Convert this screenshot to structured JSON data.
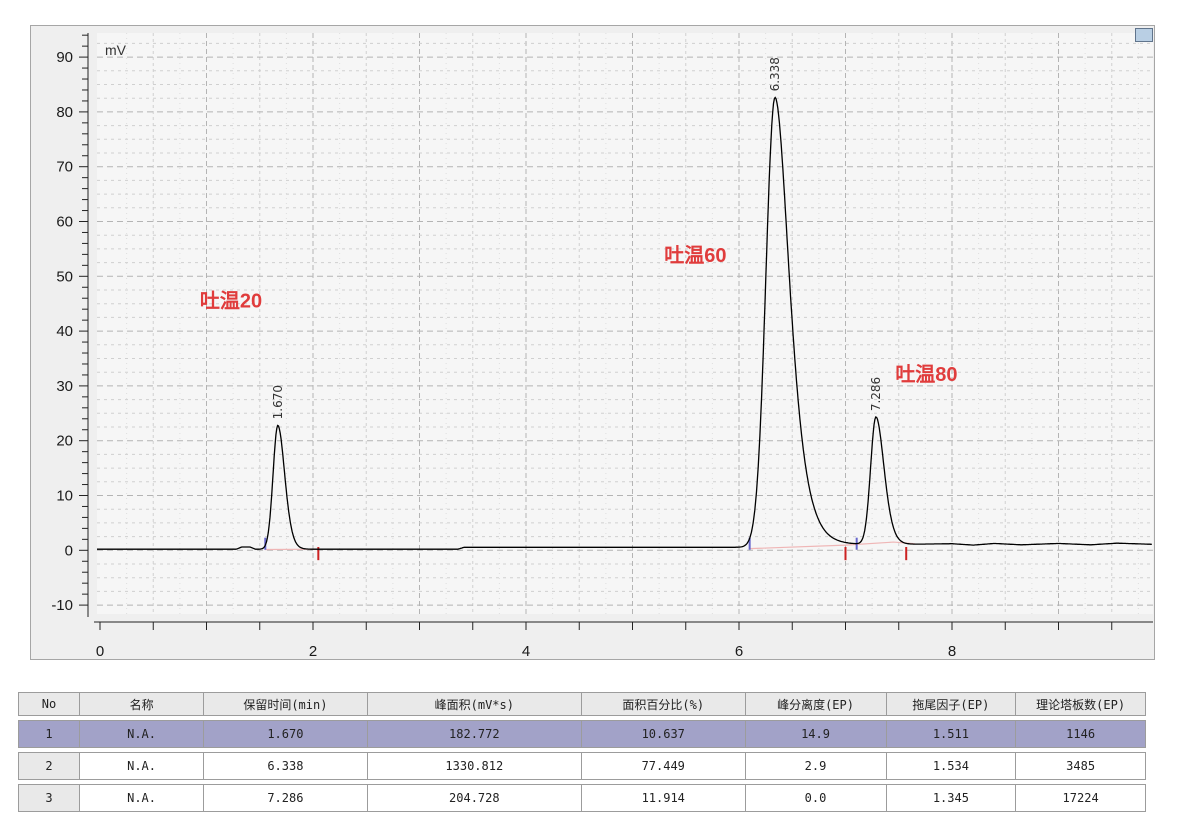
{
  "chart_data": {
    "type": "line",
    "title": "",
    "ylabel": "mV",
    "xlabel": "",
    "xlim": [
      0,
      9.87
    ],
    "ylim": [
      -10,
      94
    ],
    "grid": true,
    "x_tick_values": [
      0,
      2,
      4,
      6,
      8
    ],
    "x_tick_labels": [
      "0",
      "2",
      "4",
      "6",
      "8"
    ],
    "x_minor_tick_step": 0.5,
    "y_tick_values": [
      90,
      80,
      70,
      60,
      50,
      40,
      30,
      20,
      10,
      0,
      -10
    ],
    "y_tick_labels": [
      "90",
      "80",
      "70",
      "60",
      "50",
      "40",
      "30",
      "20",
      "10",
      "0",
      "-10"
    ],
    "y_minor_tick_step": 2,
    "peaks": [
      {
        "retention_time": 1.67,
        "height_mV": 22.6,
        "label": "1.670",
        "annotation": "吐温20",
        "sigma_left": 0.045,
        "sigma_right": 0.06,
        "tail": 1.0
      },
      {
        "retention_time": 6.338,
        "height_mV": 82.0,
        "label": "6.338",
        "annotation": "吐温60",
        "sigma_left": 0.085,
        "sigma_right": 0.115,
        "tail": 1.2
      },
      {
        "retention_time": 7.286,
        "height_mV": 23.2,
        "label": "7.286",
        "annotation": "吐温80",
        "sigma_left": 0.05,
        "sigma_right": 0.07,
        "tail": 1.0
      }
    ],
    "annotations": [
      {
        "text": "吐温20",
        "x": 1.23,
        "y": 45.6
      },
      {
        "text": "吐温60",
        "x": 5.59,
        "y": 53.9
      },
      {
        "text": "吐温80",
        "x": 7.76,
        "y": 32.2
      }
    ],
    "baseline_nodes": [
      [
        -0.05,
        0.2
      ],
      [
        1.28,
        0.2
      ],
      [
        1.33,
        0.6
      ],
      [
        1.41,
        0.6
      ],
      [
        1.46,
        0.2
      ],
      [
        3.36,
        0.2
      ],
      [
        3.42,
        0.55
      ],
      [
        6.05,
        0.55
      ],
      [
        6.5,
        0.7
      ],
      [
        7.0,
        0.95
      ],
      [
        7.3,
        1.1
      ],
      [
        7.6,
        1.1
      ],
      [
        8.0,
        1.2
      ],
      [
        8.2,
        0.95
      ],
      [
        8.4,
        1.25
      ],
      [
        8.65,
        1.0
      ],
      [
        9.0,
        1.25
      ],
      [
        9.3,
        1.0
      ],
      [
        9.55,
        1.3
      ],
      [
        9.87,
        1.1
      ]
    ],
    "start_markers_x": [
      1.552,
      6.1,
      7.105
    ],
    "end_markers_x": [
      2.05,
      7.0,
      7.57
    ],
    "integration_segments": [
      [
        [
          1.55,
          0.15
        ],
        [
          2.06,
          0.2
        ]
      ],
      [
        [
          6.1,
          0.3
        ],
        [
          7.0,
          0.95
        ],
        [
          7.45,
          1.5
        ],
        [
          7.65,
          1.2
        ]
      ]
    ],
    "colors": {
      "trace": "#000000",
      "annotation": "#e03c3c",
      "start_marker": "#6666cc",
      "end_marker": "#cc2222",
      "integration_line": "#efb6b6",
      "selected_row": "#a2a2c8"
    }
  },
  "table": {
    "columns": [
      "No",
      "名称",
      "保留时间(min)",
      "峰面积(mV*s)",
      "面积百分比(%)",
      "峰分离度(EP)",
      "拖尾因子(EP)",
      "理论塔板数(EP)"
    ],
    "rows": [
      [
        "1",
        "N.A.",
        "1.670",
        "182.772",
        "10.637",
        "14.9",
        "1.511",
        "1146"
      ],
      [
        "2",
        "N.A.",
        "6.338",
        "1330.812",
        "77.449",
        "2.9",
        "1.534",
        "3485"
      ],
      [
        "3",
        "N.A.",
        "7.286",
        "204.728",
        "11.914",
        "0.0",
        "1.345",
        "17224"
      ]
    ],
    "selected_row_index": 0
  }
}
